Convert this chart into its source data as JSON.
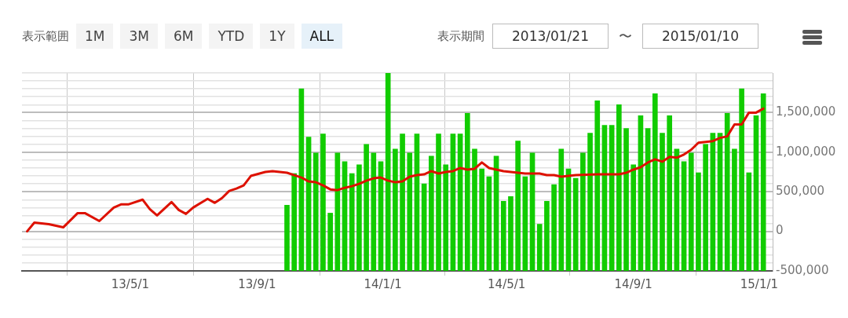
{
  "chart_data": {
    "type": "bar",
    "annotations": [
      "表示範囲",
      "1M",
      "3M",
      "6M",
      "YTD",
      "1Y",
      "ALL",
      "表示期間",
      "2013/01/21",
      "〜",
      "2015/01/10"
    ],
    "series": [
      {
        "color": "#11cc00",
        "x": [
          "2013-09-30",
          "2013-10-07",
          "2013-10-14",
          "2013-10-21",
          "2013-10-28",
          "2013-11-04",
          "2013-11-11",
          "2013-11-18",
          "2013-11-25",
          "2013-12-02",
          "2013-12-09",
          "2013-12-16",
          "2013-12-23",
          "2013-12-30",
          "2014-01-06",
          "2014-01-13",
          "2014-01-20",
          "2014-01-27",
          "2014-02-03",
          "2014-02-10",
          "2014-02-17",
          "2014-02-24",
          "2014-03-03",
          "2014-03-10",
          "2014-03-17",
          "2014-03-24",
          "2014-03-31",
          "2014-04-07",
          "2014-04-14",
          "2014-04-21",
          "2014-04-28",
          "2014-05-05",
          "2014-05-12",
          "2014-05-19",
          "2014-05-26",
          "2014-06-02",
          "2014-06-09",
          "2014-06-16",
          "2014-06-23",
          "2014-06-30",
          "2014-07-07",
          "2014-07-14",
          "2014-07-21",
          "2014-07-28",
          "2014-08-04",
          "2014-08-11",
          "2014-08-18",
          "2014-08-25",
          "2014-09-01",
          "2014-09-08",
          "2014-09-15",
          "2014-09-22",
          "2014-09-29",
          "2014-10-06",
          "2014-10-13",
          "2014-10-20",
          "2014-10-27",
          "2014-11-03",
          "2014-11-10",
          "2014-11-17",
          "2014-11-24",
          "2014-12-01",
          "2014-12-08",
          "2014-12-15",
          "2014-12-22",
          "2014-12-29",
          "2015-01-05"
        ],
        "values": [
          830000,
          1230000,
          2300000,
          1690000,
          1490000,
          1730000,
          730000,
          1490000,
          1380000,
          1230000,
          1340000,
          1600000,
          1490000,
          1380000,
          2500000,
          1540000,
          1730000,
          1490000,
          1730000,
          1100000,
          1450000,
          1730000,
          1340000,
          1730000,
          1730000,
          1990000,
          1540000,
          1290000,
          1190000,
          1450000,
          880000,
          940000,
          1640000,
          1190000,
          1490000,
          590000,
          880000,
          1090000,
          1540000,
          1290000,
          1170000,
          1490000,
          1740000,
          2150000,
          1840000,
          1840000,
          2100000,
          1800000,
          1340000,
          1960000,
          1800000,
          2240000,
          1740000,
          1960000,
          1540000,
          1380000,
          1490000,
          1240000,
          1600000,
          1740000,
          1740000,
          1990000,
          1540000,
          2300000,
          1240000,
          1960000,
          2240000
        ],
        "base": [
          -500000,
          -500000,
          -500000,
          -500000,
          -500000,
          -500000,
          -500000,
          -500000,
          -500000,
          -500000,
          -500000,
          -500000,
          -500000,
          -500000,
          -500000,
          -500000,
          -500000,
          -500000,
          -500000,
          -500000,
          -500000,
          -500000,
          -500000,
          -500000,
          -500000,
          -500000,
          -500000,
          -500000,
          -500000,
          -500000,
          -500000,
          -500000,
          -500000,
          -500000,
          -500000,
          -500000,
          -500000,
          -500000,
          -500000,
          -500000,
          -500000,
          -500000,
          -500000,
          -500000,
          -500000,
          -500000,
          -500000,
          -500000,
          -500000,
          -500000,
          -500000,
          -500000,
          -500000,
          -500000,
          -500000,
          -500000,
          -500000,
          -500000,
          -500000,
          -500000,
          -500000,
          -500000,
          -500000,
          -500000,
          -500000,
          -500000,
          -500000
        ]
      },
      {
        "type": "line",
        "color": "#dd1100",
        "x": [
          "2013-01-21",
          "2013-01-28",
          "2013-02-11",
          "2013-02-18",
          "2013-02-25",
          "2013-03-11",
          "2013-03-18",
          "2013-04-01",
          "2013-04-15",
          "2013-04-22",
          "2013-04-29",
          "2013-05-13",
          "2013-05-20",
          "2013-05-27",
          "2013-06-10",
          "2013-06-17",
          "2013-06-24",
          "2013-07-01",
          "2013-07-15",
          "2013-07-22",
          "2013-07-29",
          "2013-08-05",
          "2013-08-12",
          "2013-08-19",
          "2013-08-26",
          "2013-09-09",
          "2013-09-16",
          "2013-09-23",
          "2013-09-30",
          "2013-10-14",
          "2013-10-21",
          "2013-10-28",
          "2013-11-04",
          "2013-11-11",
          "2013-11-18",
          "2013-11-25",
          "2013-12-02",
          "2013-12-09",
          "2013-12-16",
          "2013-12-23",
          "2013-12-30",
          "2014-01-06",
          "2014-01-13",
          "2014-01-20",
          "2014-01-27",
          "2014-02-03",
          "2014-02-10",
          "2014-02-17",
          "2014-02-24",
          "2014-03-03",
          "2014-03-10",
          "2014-03-17",
          "2014-03-24",
          "2014-03-31",
          "2014-04-07",
          "2014-04-14",
          "2014-04-21",
          "2014-04-28",
          "2014-05-05",
          "2014-05-12",
          "2014-05-19",
          "2014-05-26",
          "2014-06-02",
          "2014-06-09",
          "2014-06-16",
          "2014-06-23",
          "2014-06-30",
          "2014-07-07",
          "2014-07-28",
          "2014-08-18",
          "2014-08-25",
          "2014-09-01",
          "2014-09-08",
          "2014-09-15",
          "2014-09-22",
          "2014-09-29",
          "2014-10-06",
          "2014-10-13",
          "2014-10-20",
          "2014-10-27",
          "2014-11-03",
          "2014-11-10",
          "2014-11-17",
          "2014-11-24",
          "2014-12-01",
          "2014-12-08",
          "2014-12-15",
          "2014-12-22",
          "2014-12-29",
          "2015-01-05"
        ],
        "values": [
          0,
          110000,
          90000,
          70000,
          50000,
          230000,
          230000,
          130000,
          300000,
          340000,
          340000,
          400000,
          280000,
          200000,
          370000,
          270000,
          220000,
          300000,
          410000,
          360000,
          420000,
          510000,
          540000,
          580000,
          700000,
          750000,
          760000,
          750000,
          740000,
          680000,
          630000,
          620000,
          580000,
          530000,
          520000,
          550000,
          570000,
          600000,
          640000,
          670000,
          680000,
          640000,
          620000,
          630000,
          690000,
          710000,
          720000,
          760000,
          730000,
          750000,
          760000,
          800000,
          780000,
          790000,
          870000,
          800000,
          780000,
          760000,
          750000,
          740000,
          730000,
          730000,
          730000,
          710000,
          710000,
          690000,
          700000,
          710000,
          720000,
          720000,
          740000,
          780000,
          810000,
          870000,
          910000,
          880000,
          940000,
          930000,
          970000,
          1030000,
          1120000,
          1130000,
          1140000,
          1180000,
          1200000,
          1350000,
          1350000,
          1500000,
          1500000,
          1550000
        ]
      }
    ],
    "xlim": [
      "2013-01-16",
      "2015-01-14"
    ],
    "xticks": [
      {
        "value": "2013-05-01",
        "label": "13/5/1"
      },
      {
        "value": "2013-09-01",
        "label": "13/9/1"
      },
      {
        "value": "2014-01-01",
        "label": "14/1/1"
      },
      {
        "value": "2014-05-01",
        "label": "14/5/1"
      },
      {
        "value": "2014-09-01",
        "label": "14/9/1"
      },
      {
        "value": "2015-01-01",
        "label": "15/1/1"
      }
    ],
    "ylim": [
      -500000,
      2000000
    ],
    "yticks": [
      {
        "value": -500000,
        "label": "-500,000"
      },
      {
        "value": -400000,
        "label": null
      },
      {
        "value": -300000,
        "label": null
      },
      {
        "value": -200000,
        "label": null
      },
      {
        "value": -100000,
        "label": null
      },
      0,
      {
        "value": 100000,
        "label": null
      },
      {
        "value": 200000,
        "label": null
      },
      {
        "value": 300000,
        "label": null
      },
      {
        "value": 400000,
        "label": null
      },
      {
        "value": 500000,
        "label": "500,000"
      },
      {
        "value": 600000,
        "label": null
      },
      {
        "value": 700000,
        "label": null
      },
      {
        "value": 800000,
        "label": null
      },
      {
        "value": 900000,
        "label": null
      },
      {
        "value": 1000000,
        "label": "1,000,000"
      },
      {
        "value": 1100000,
        "label": null
      },
      {
        "value": 1200000,
        "label": null
      },
      {
        "value": 1300000,
        "label": null
      },
      {
        "value": 1400000,
        "label": null
      },
      {
        "value": 1500000,
        "label": "1,500,000"
      },
      {
        "value": 1600000,
        "label": null
      },
      {
        "value": 1700000,
        "label": null
      },
      {
        "value": 1800000,
        "label": null
      },
      {
        "value": 1900000,
        "label": null
      },
      {
        "value": 2000000,
        "label": null
      }
    ],
    "grid": true
  }
}
